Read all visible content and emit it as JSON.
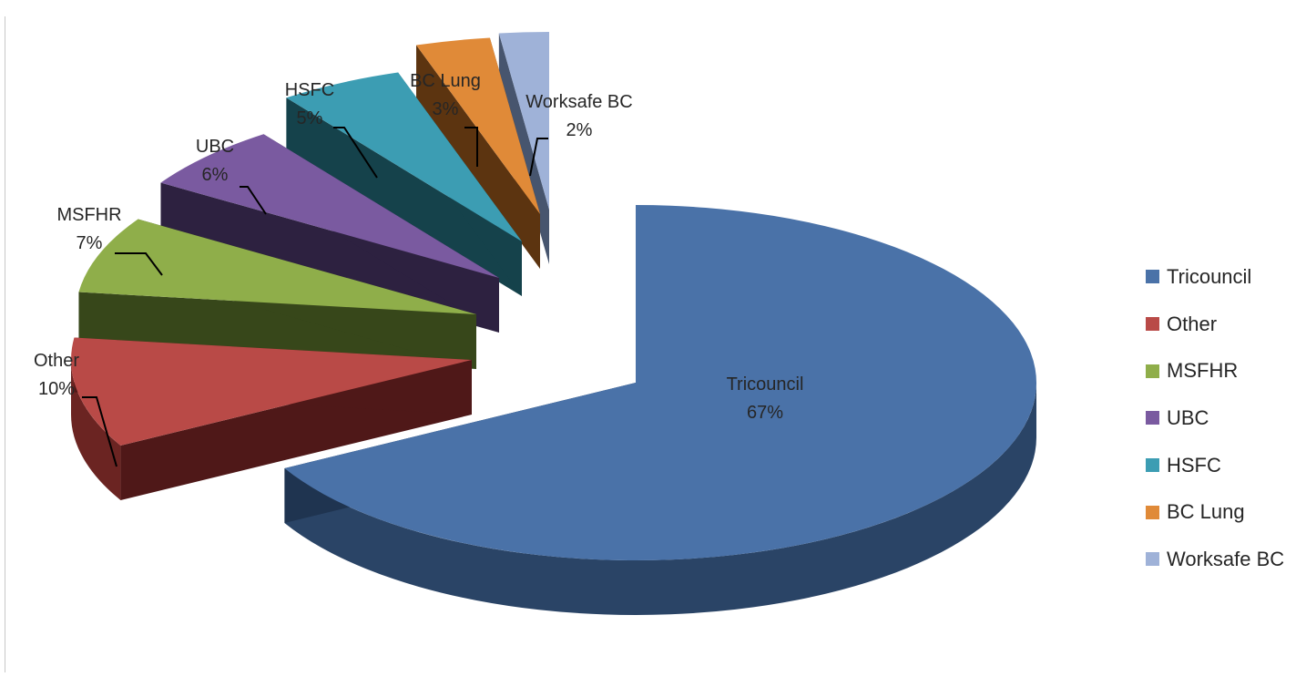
{
  "chart_data": {
    "type": "pie",
    "variant": "3d-exploded",
    "title": "",
    "slices": [
      {
        "label": "Tricouncil",
        "value": 67,
        "pct_text": "67%",
        "color": "#4a72a8",
        "side": "#2a4466",
        "dark": "#1f3450"
      },
      {
        "label": "Other",
        "value": 10,
        "pct_text": "10%",
        "color": "#b94a47",
        "side": "#6b2422",
        "dark": "#4f1818"
      },
      {
        "label": "MSFHR",
        "value": 7,
        "pct_text": "7%",
        "color": "#8fae4a",
        "side": "#4d6325",
        "dark": "#37471a"
      },
      {
        "label": "UBC",
        "value": 6,
        "pct_text": "6%",
        "color": "#7a5aa0",
        "side": "#40305a",
        "dark": "#2d2140"
      },
      {
        "label": "HSFC",
        "value": 5,
        "pct_text": "5%",
        "color": "#3c9db3",
        "side": "#1f5a66",
        "dark": "#15424b"
      },
      {
        "label": "BC Lung",
        "value": 3,
        "pct_text": "3%",
        "color": "#e08a38",
        "side": "#7d4816",
        "dark": "#5c3410"
      },
      {
        "label": "Worksafe BC",
        "value": 2,
        "pct_text": "2%",
        "color": "#9fb2d8",
        "side": "#5a6c8c",
        "dark": "#47556e"
      }
    ],
    "legend_position": "right"
  }
}
